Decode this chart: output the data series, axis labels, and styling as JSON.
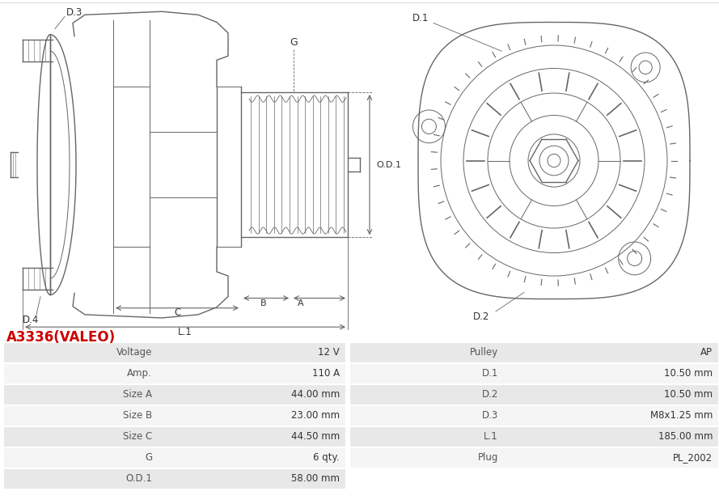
{
  "title": "A3336(VALEO)",
  "title_color": "#cc0000",
  "background_color": "#ffffff",
  "table": {
    "left_col_labels": [
      "Voltage",
      "Amp.",
      "Size A",
      "Size B",
      "Size C",
      "G",
      "O.D.1"
    ],
    "left_col_values": [
      "12 V",
      "110 A",
      "44.00 mm",
      "23.00 mm",
      "44.50 mm",
      "6 qty.",
      "58.00 mm"
    ],
    "right_col_labels": [
      "Pulley",
      "D.1",
      "D.2",
      "D.3",
      "L.1",
      "Plug",
      ""
    ],
    "right_col_values": [
      "AP",
      "10.50 mm",
      "10.50 mm",
      "M8x1.25 mm",
      "185.00 mm",
      "PL_2002",
      ""
    ],
    "row_colors": [
      "#e8e8e8",
      "#f5f5f5",
      "#e8e8e8",
      "#f5f5f5",
      "#e8e8e8",
      "#f5f5f5",
      "#e8e8e8"
    ],
    "border_color": "#ffffff",
    "label_color": "#555555",
    "value_color": "#333333"
  }
}
